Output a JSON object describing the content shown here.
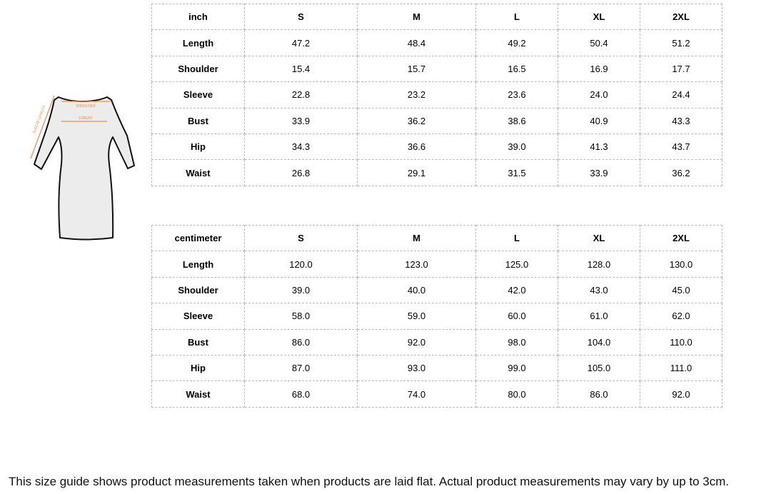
{
  "illustration": {
    "labels": {
      "shoulder": "SHOULDER",
      "bust": "1/2BUST",
      "sleeve": "SLEEVE LENGTH"
    },
    "accent_color": "#f08a4b"
  },
  "tables": [
    {
      "header": [
        "inch",
        "S",
        "M",
        "L",
        "XL",
        "2XL"
      ],
      "rows": [
        [
          "Length",
          "47.2",
          "48.4",
          "49.2",
          "50.4",
          "51.2"
        ],
        [
          "Shoulder",
          "15.4",
          "15.7",
          "16.5",
          "16.9",
          "17.7"
        ],
        [
          "Sleeve",
          "22.8",
          "23.2",
          "23.6",
          "24.0",
          "24.4"
        ],
        [
          "Bust",
          "33.9",
          "36.2",
          "38.6",
          "40.9",
          "43.3"
        ],
        [
          "Hip",
          "34.3",
          "36.6",
          "39.0",
          "41.3",
          "43.7"
        ],
        [
          "Waist",
          "26.8",
          "29.1",
          "31.5",
          "33.9",
          "36.2"
        ]
      ]
    },
    {
      "header": [
        "centimeter",
        "S",
        "M",
        "L",
        "XL",
        "2XL"
      ],
      "rows": [
        [
          "Length",
          "120.0",
          "123.0",
          "125.0",
          "128.0",
          "130.0"
        ],
        [
          "Shoulder",
          "39.0",
          "40.0",
          "42.0",
          "43.0",
          "45.0"
        ],
        [
          "Sleeve",
          "58.0",
          "59.0",
          "60.0",
          "61.0",
          "62.0"
        ],
        [
          "Bust",
          "86.0",
          "92.0",
          "98.0",
          "104.0",
          "110.0"
        ],
        [
          "Hip",
          "87.0",
          "93.0",
          "99.0",
          "105.0",
          "111.0"
        ],
        [
          "Waist",
          "68.0",
          "74.0",
          "80.0",
          "86.0",
          "92.0"
        ]
      ]
    }
  ],
  "footer": "This size guide shows product measurements taken when products are laid flat. Actual product measurements may vary by up to 3cm."
}
